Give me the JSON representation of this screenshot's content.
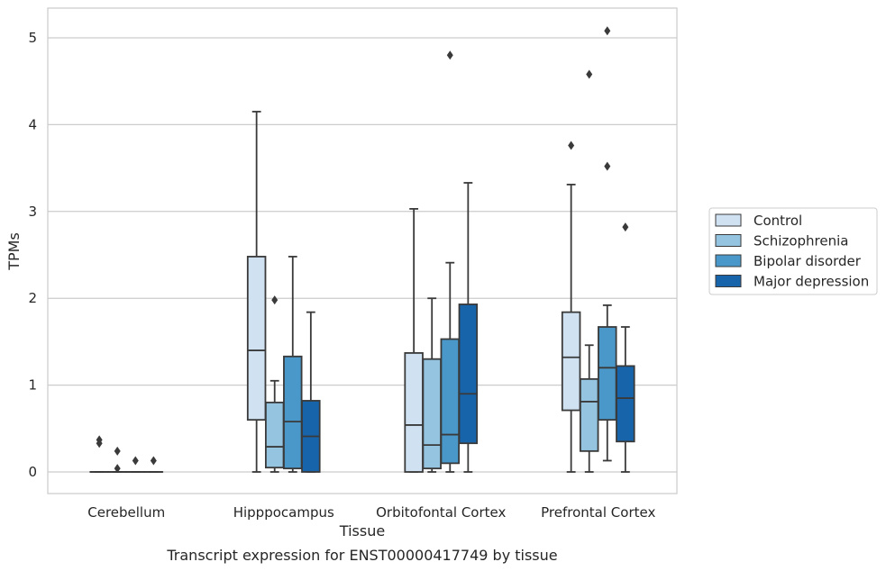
{
  "chart_data": {
    "type": "box",
    "xlabel": "Tissue",
    "ylabel": "TPMs",
    "caption": "Transcript expression for ENST00000417749 by tissue",
    "ylim": [
      -0.25,
      5.35
    ],
    "yticks": [
      "0",
      "1",
      "2",
      "3",
      "4",
      "5"
    ],
    "grid": "horizontal",
    "legend_position": "right",
    "categories": [
      "Cerebellum",
      "Hipppocampus",
      "Orbitofontal Cortex",
      "Prefrontal Cortex"
    ],
    "series": [
      {
        "name": "Control",
        "color": "#d0e1f2",
        "boxes": [
          {
            "category": "Cerebellum",
            "whislo": 0,
            "q1": 0,
            "med": 0,
            "q3": 0,
            "whishi": 0,
            "fliers": [
              0.33,
              0.37
            ]
          },
          {
            "category": "Hipppocampus",
            "whislo": 0,
            "q1": 0.6,
            "med": 1.4,
            "q3": 2.48,
            "whishi": 4.15,
            "fliers": []
          },
          {
            "category": "Orbitofontal Cortex",
            "whislo": 0,
            "q1": 0,
            "med": 0.54,
            "q3": 1.37,
            "whishi": 3.03,
            "fliers": []
          },
          {
            "category": "Prefrontal Cortex",
            "whislo": 0,
            "q1": 0.71,
            "med": 1.32,
            "q3": 1.84,
            "whishi": 3.31,
            "fliers": [
              3.76
            ]
          }
        ]
      },
      {
        "name": "Schizophrenia",
        "color": "#94c4df",
        "boxes": [
          {
            "category": "Cerebellum",
            "whislo": 0,
            "q1": 0,
            "med": 0,
            "q3": 0,
            "whishi": 0,
            "fliers": [
              0.04,
              0.24
            ]
          },
          {
            "category": "Hipppocampus",
            "whislo": 0,
            "q1": 0.05,
            "med": 0.29,
            "q3": 0.8,
            "whishi": 1.05,
            "fliers": [
              1.98
            ]
          },
          {
            "category": "Orbitofontal Cortex",
            "whislo": 0,
            "q1": 0.04,
            "med": 0.31,
            "q3": 1.3,
            "whishi": 2.0,
            "fliers": []
          },
          {
            "category": "Prefrontal Cortex",
            "whislo": 0,
            "q1": 0.24,
            "med": 0.81,
            "q3": 1.07,
            "whishi": 1.46,
            "fliers": [
              4.58
            ]
          }
        ]
      },
      {
        "name": "Bipolar disorder",
        "color": "#4a98c9",
        "boxes": [
          {
            "category": "Cerebellum",
            "whislo": 0,
            "q1": 0,
            "med": 0,
            "q3": 0,
            "whishi": 0,
            "fliers": [
              0.13
            ]
          },
          {
            "category": "Hipppocampus",
            "whislo": 0,
            "q1": 0.04,
            "med": 0.58,
            "q3": 1.33,
            "whishi": 2.48,
            "fliers": []
          },
          {
            "category": "Orbitofontal Cortex",
            "whislo": 0,
            "q1": 0.1,
            "med": 0.43,
            "q3": 1.53,
            "whishi": 2.41,
            "fliers": [
              4.8
            ]
          },
          {
            "category": "Prefrontal Cortex",
            "whislo": 0.13,
            "q1": 0.6,
            "med": 1.2,
            "q3": 1.67,
            "whishi": 1.92,
            "fliers": [
              3.52,
              5.08
            ]
          }
        ]
      },
      {
        "name": "Major depression",
        "color": "#1764ab",
        "boxes": [
          {
            "category": "Cerebellum",
            "whislo": 0,
            "q1": 0,
            "med": 0,
            "q3": 0,
            "whishi": 0,
            "fliers": [
              0.13
            ]
          },
          {
            "category": "Hipppocampus",
            "whislo": 0,
            "q1": 0,
            "med": 0.41,
            "q3": 0.82,
            "whishi": 1.84,
            "fliers": []
          },
          {
            "category": "Orbitofontal Cortex",
            "whislo": 0,
            "q1": 0.33,
            "med": 0.9,
            "q3": 1.93,
            "whishi": 3.33,
            "fliers": []
          },
          {
            "category": "Prefrontal Cortex",
            "whislo": 0,
            "q1": 0.35,
            "med": 0.85,
            "q3": 1.22,
            "whishi": 1.67,
            "fliers": [
              2.82
            ]
          }
        ]
      }
    ]
  }
}
